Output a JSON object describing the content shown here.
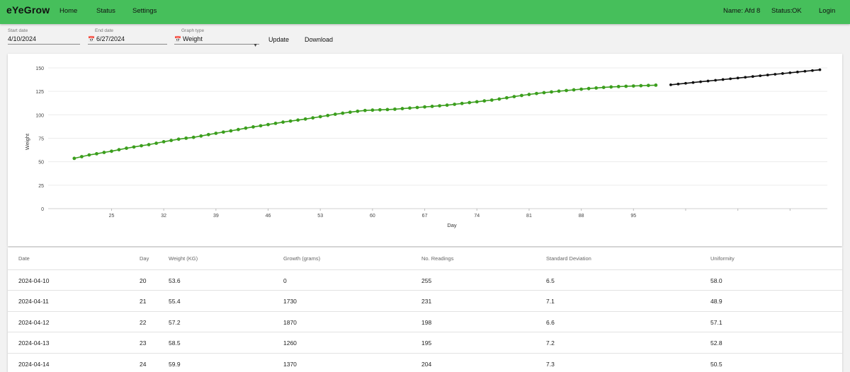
{
  "app": {
    "brand": "eYeGrow",
    "nav": [
      "Home",
      "Status",
      "Settings"
    ],
    "name_label": "Name: Afd 8",
    "status_label": "Status:",
    "status_value": "OK",
    "login_label": "Login"
  },
  "controls": {
    "start_label": "Start date",
    "start_value": "4/10/2024",
    "end_label": "End date",
    "end_value": "6/27/2024",
    "graph_label": "Graph type",
    "graph_value": "Weight",
    "update_label": "Update",
    "download_label": "Download"
  },
  "chart_data": {
    "type": "line",
    "xlabel": "Day",
    "ylabel": "Weight",
    "ylim": [
      0,
      150
    ],
    "yticks": [
      0,
      25,
      50,
      75,
      100,
      125,
      150
    ],
    "xticks": [
      25,
      32,
      39,
      46,
      53,
      60,
      67,
      74,
      81,
      88,
      95
    ],
    "xlim": [
      20,
      116
    ],
    "grid": true,
    "colors": {
      "actual": "#3b9e1d",
      "forecast": "#111111"
    },
    "series": [
      {
        "x": [
          20,
          21,
          22,
          23,
          24,
          25,
          26,
          27,
          28,
          29,
          30,
          31,
          32,
          33,
          34,
          35,
          36,
          37,
          38,
          39,
          40,
          41,
          42,
          43,
          44,
          45,
          46,
          47,
          48,
          49,
          50,
          51,
          52,
          53,
          54,
          55,
          56,
          57,
          58,
          59,
          60,
          61,
          62,
          63,
          64,
          65,
          66,
          67,
          68,
          69,
          70,
          71,
          72,
          73,
          74,
          75,
          76,
          77,
          78,
          79,
          80,
          81,
          82,
          83,
          84,
          85,
          86,
          87,
          88,
          89,
          90,
          91,
          92,
          93,
          94,
          95,
          96,
          97,
          98
        ],
        "values": [
          53.6,
          55.4,
          57.2,
          58.5,
          59.9,
          61.2,
          62.8,
          64.4,
          65.7,
          67.0,
          68.2,
          69.7,
          71.3,
          72.7,
          74.0,
          75.1,
          76.0,
          77.4,
          78.9,
          80.3,
          81.6,
          82.9,
          84.3,
          85.8,
          87.1,
          88.3,
          89.6,
          90.9,
          92.2,
          93.3,
          94.4,
          95.5,
          96.7,
          98.0,
          99.3,
          100.6,
          101.7,
          102.8,
          103.8,
          104.6,
          105.0,
          105.3,
          105.6,
          106.0,
          106.6,
          107.2,
          107.8,
          108.4,
          109.0,
          109.6,
          110.3,
          111.2,
          112.1,
          113.0,
          113.9,
          114.8,
          115.7,
          116.8,
          118.1,
          119.4,
          120.6,
          121.7,
          122.7,
          123.6,
          124.4,
          125.2,
          125.9,
          126.6,
          127.3,
          128.0,
          128.6,
          129.2,
          129.7,
          130.1,
          130.4,
          130.7,
          131.0,
          131.3,
          131.6
        ]
      },
      {
        "x": [
          100,
          101,
          102,
          103,
          104,
          105,
          106,
          107,
          108,
          109,
          110,
          111,
          112,
          113,
          114,
          115,
          116,
          117,
          118,
          119,
          120
        ],
        "values": [
          132.0,
          132.8,
          133.6,
          134.4,
          135.2,
          136.0,
          136.8,
          137.6,
          138.4,
          139.2,
          140.0,
          140.8,
          141.6,
          142.4,
          143.2,
          144.0,
          144.8,
          145.6,
          146.4,
          147.2,
          148.0
        ]
      }
    ]
  },
  "table": {
    "headers": [
      "Date",
      "Day",
      "Weight (KG)",
      "Growth (grams)",
      "No. Readings",
      "Standard Deviation",
      "Uniformity"
    ],
    "rows": [
      [
        "2024-04-10",
        "20",
        "53.6",
        "0",
        "255",
        "6.5",
        "58.0"
      ],
      [
        "2024-04-11",
        "21",
        "55.4",
        "1730",
        "231",
        "7.1",
        "48.9"
      ],
      [
        "2024-04-12",
        "22",
        "57.2",
        "1870",
        "198",
        "6.6",
        "57.1"
      ],
      [
        "2024-04-13",
        "23",
        "58.5",
        "1260",
        "195",
        "7.2",
        "52.8"
      ],
      [
        "2024-04-14",
        "24",
        "59.9",
        "1370",
        "204",
        "7.3",
        "50.5"
      ]
    ]
  }
}
